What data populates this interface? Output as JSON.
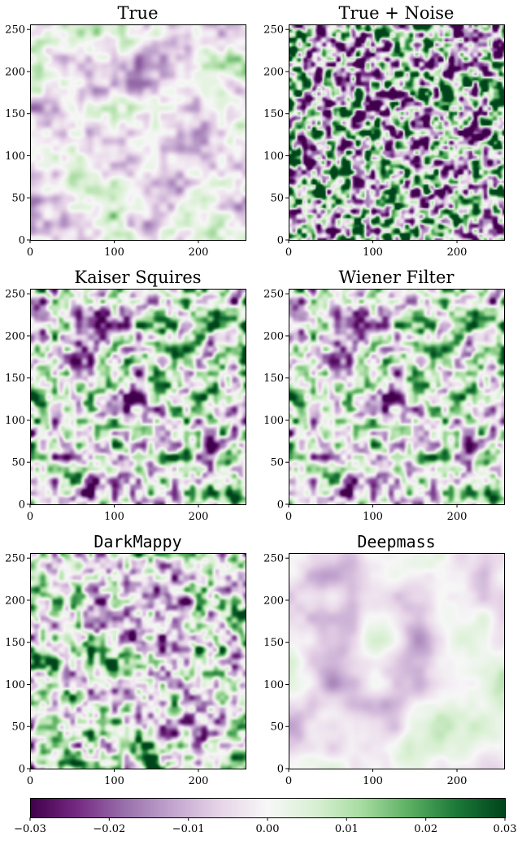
{
  "chart_data": [
    {
      "type": "heatmap",
      "title": "True",
      "title_font": "serif",
      "xlim": [
        0,
        256
      ],
      "ylim": [
        0,
        256
      ],
      "x_ticks": [
        "0",
        "100",
        "200"
      ],
      "y_ticks": [
        "0",
        "50",
        "100",
        "150",
        "200",
        "250"
      ],
      "texture": {
        "seed": 11,
        "amplitude": 0.012,
        "bias": -0.002,
        "smoothness": "medium",
        "anisotropy": "diagonal streaks"
      }
    },
    {
      "type": "heatmap",
      "title": "True + Noise",
      "title_font": "serif",
      "xlim": [
        0,
        256
      ],
      "ylim": [
        0,
        256
      ],
      "x_ticks": [
        "0",
        "100",
        "200"
      ],
      "y_ticks": [
        "0",
        "50",
        "100",
        "150",
        "200",
        "250"
      ],
      "texture": {
        "seed": 23,
        "amplitude": 0.04,
        "bias": 0.0,
        "smoothness": "fine"
      }
    },
    {
      "type": "heatmap",
      "title": "Kaiser Squires",
      "title_font": "serif",
      "xlim": [
        0,
        256
      ],
      "ylim": [
        0,
        256
      ],
      "x_ticks": [
        "0",
        "100",
        "200"
      ],
      "y_ticks": [
        "0",
        "50",
        "100",
        "150",
        "200",
        "250"
      ],
      "texture": {
        "seed": 37,
        "amplitude": 0.024,
        "bias": 0.0,
        "smoothness": "fine-medium"
      }
    },
    {
      "type": "heatmap",
      "title": "Wiener Filter",
      "title_font": "serif",
      "xlim": [
        0,
        256
      ],
      "ylim": [
        0,
        256
      ],
      "x_ticks": [
        "0",
        "100",
        "200"
      ],
      "y_ticks": [
        "0",
        "50",
        "100",
        "150",
        "200",
        "250"
      ],
      "texture": {
        "seed": 37,
        "amplitude": 0.022,
        "bias": 0.0,
        "smoothness": "fine-medium"
      }
    },
    {
      "type": "heatmap",
      "title": "DarkMappy",
      "title_font": "monospace",
      "xlim": [
        0,
        256
      ],
      "ylim": [
        0,
        256
      ],
      "x_ticks": [
        "0",
        "100",
        "200"
      ],
      "y_ticks": [
        "0",
        "50",
        "100",
        "150",
        "200",
        "250"
      ],
      "texture": {
        "seed": 53,
        "amplitude": 0.022,
        "bias": 0.001,
        "smoothness": "fine-medium"
      }
    },
    {
      "type": "heatmap",
      "title": "Deepmass",
      "title_font": "monospace",
      "xlim": [
        0,
        256
      ],
      "ylim": [
        0,
        256
      ],
      "x_ticks": [
        "0",
        "100",
        "200"
      ],
      "y_ticks": [
        "0",
        "50",
        "100",
        "150",
        "200",
        "250"
      ],
      "texture": {
        "seed": 71,
        "amplitude": 0.009,
        "bias": -0.0015,
        "smoothness": "smooth"
      }
    }
  ],
  "colorbar": {
    "min": -0.03,
    "max": 0.03,
    "colormap": "PRGn",
    "ticks": [
      "−0.03",
      "−0.02",
      "−0.01",
      "0.00",
      "0.01",
      "0.02",
      "0.03"
    ],
    "tick_values": [
      -0.03,
      -0.02,
      -0.01,
      0.0,
      0.01,
      0.02,
      0.03
    ]
  },
  "colors": {
    "dark_purple": "#40004b",
    "purple": "#762a83",
    "mid_purple": "#9970ab",
    "light_purple": "#c2a5cf",
    "pale_purple": "#e7d4e8",
    "white": "#f7f7f7",
    "pale_green": "#d9f0d3",
    "light_green": "#a6dba0",
    "mid_green": "#5aae61",
    "green": "#1b7837",
    "dark_green": "#00441b"
  }
}
